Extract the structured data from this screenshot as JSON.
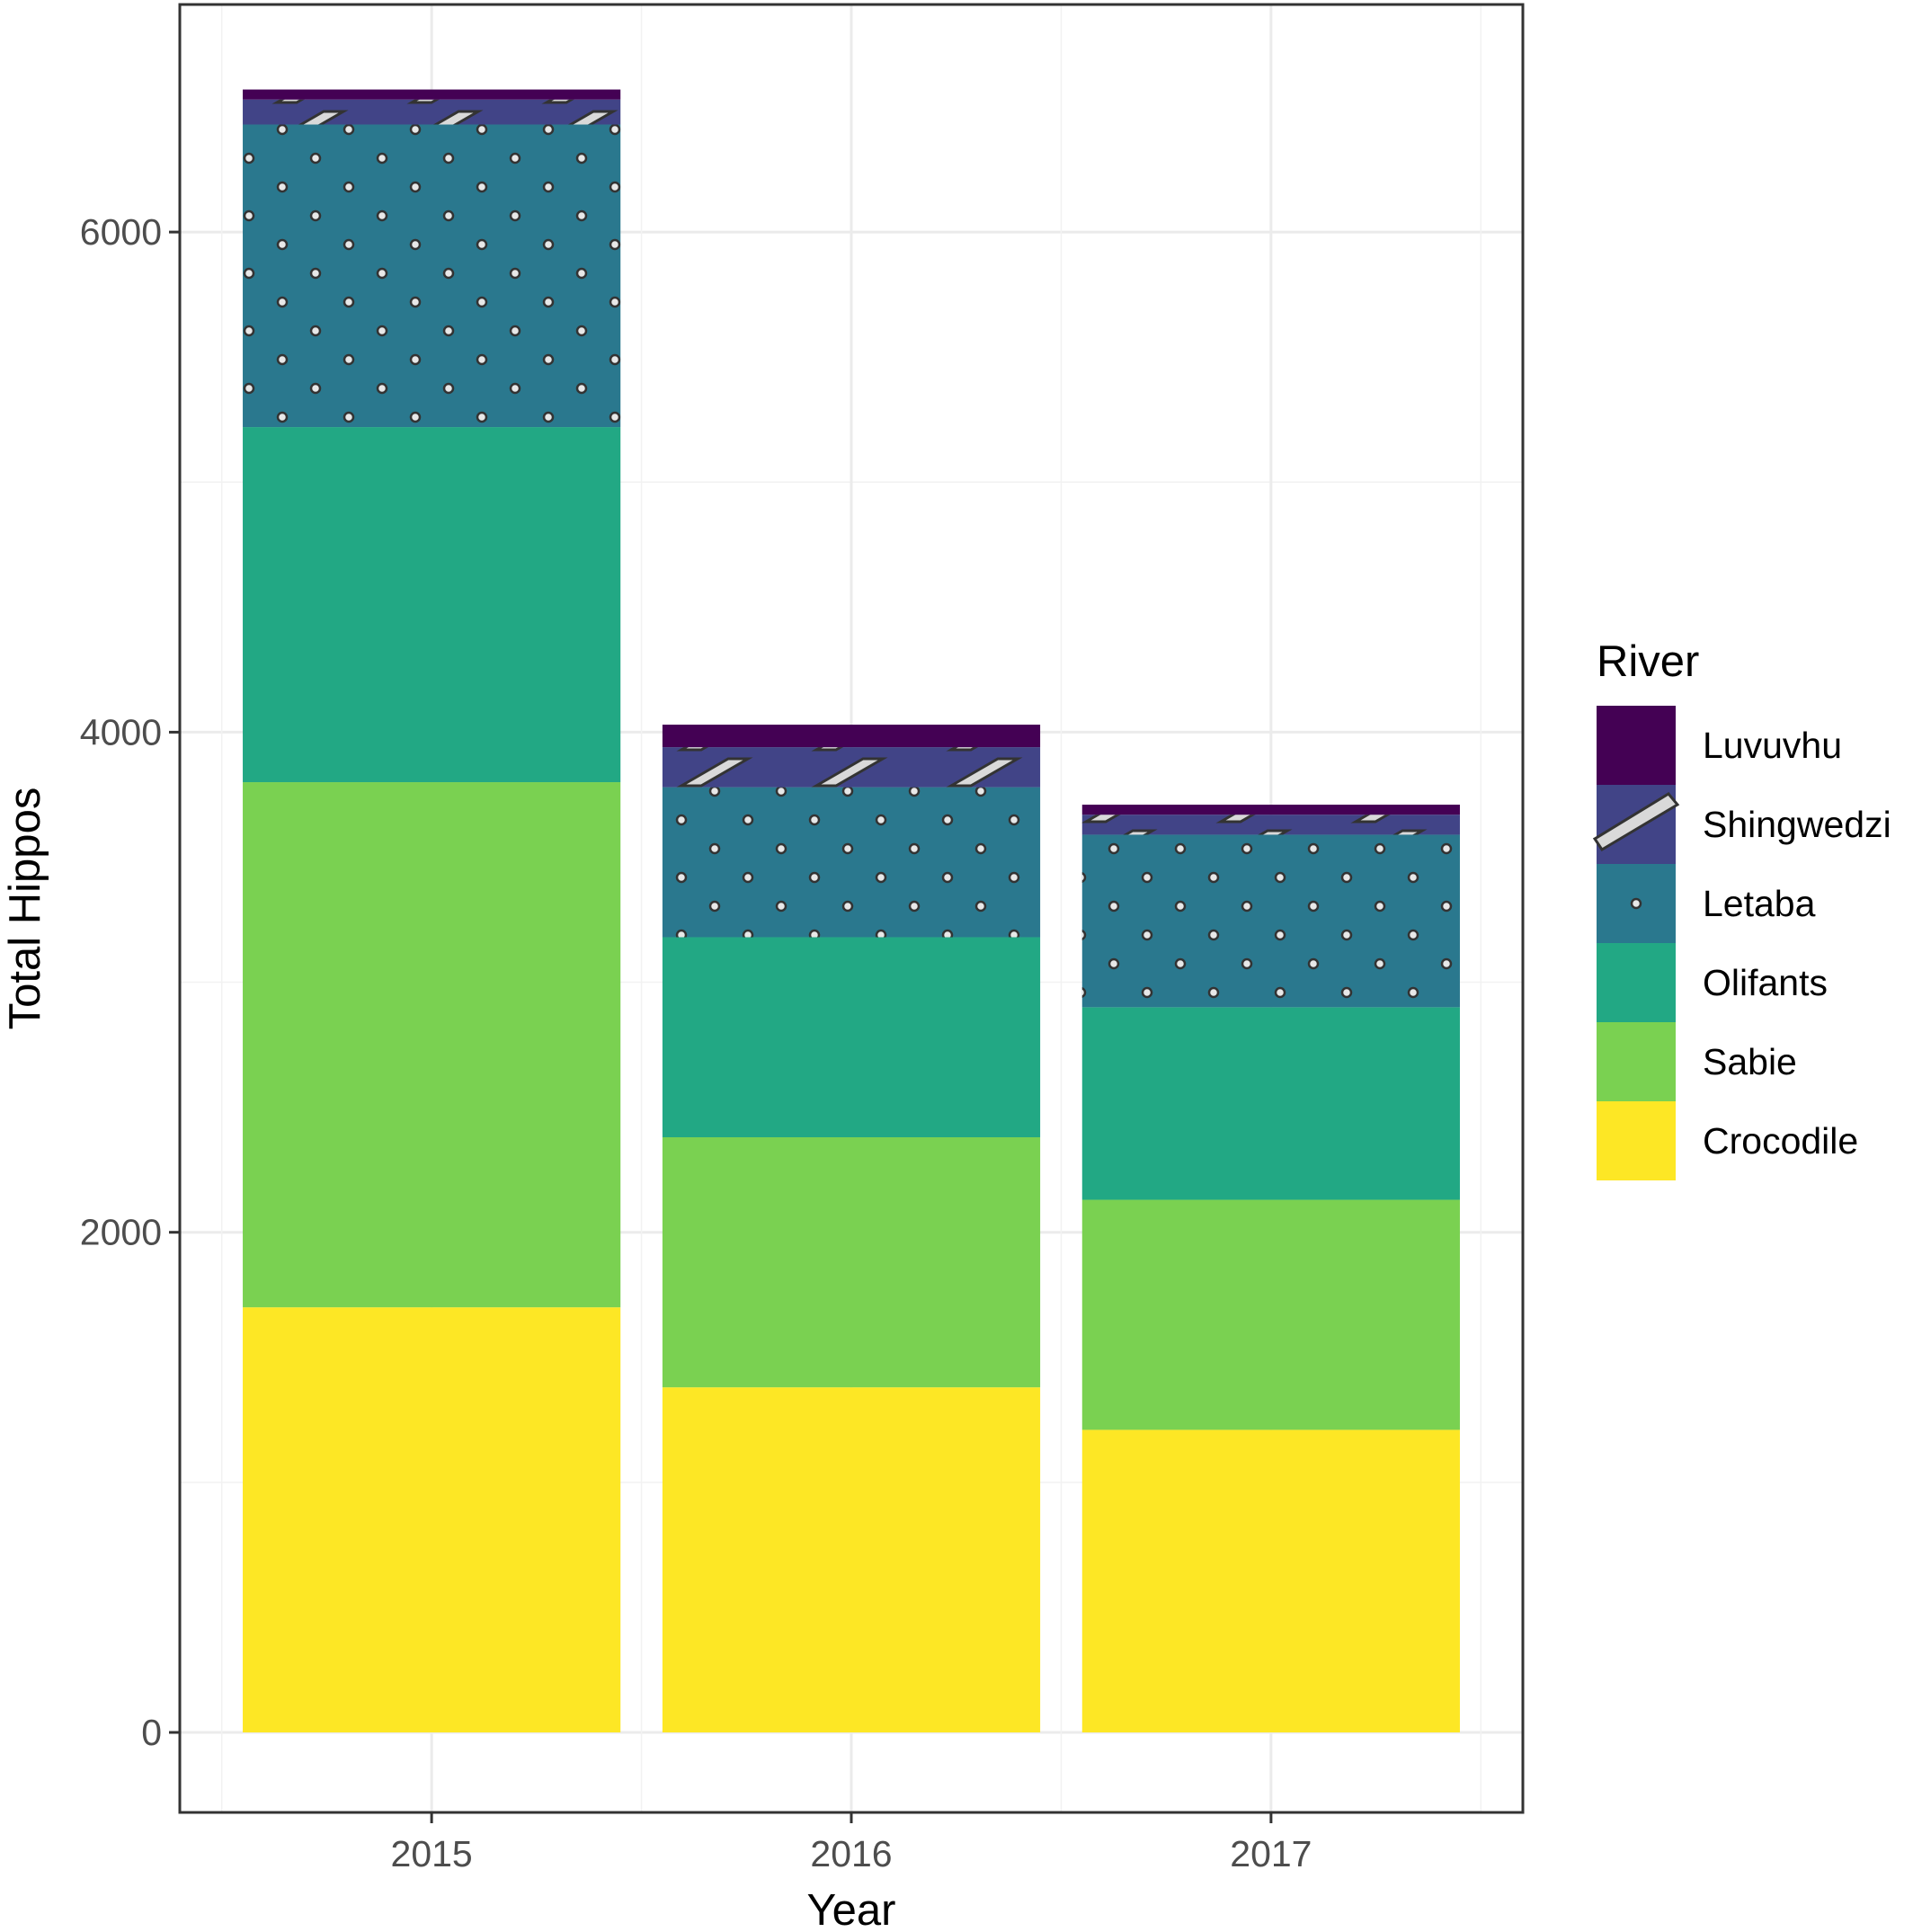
{
  "chart_data": {
    "type": "bar",
    "stacked": true,
    "categories": [
      "2015",
      "2016",
      "2017"
    ],
    "xlabel": "Year",
    "ylabel": "Total Hippos",
    "ylim": [
      -320,
      6910
    ],
    "yticks": [
      0,
      2000,
      4000,
      6000
    ],
    "grid": true,
    "legend": {
      "title": "River",
      "placement": "right"
    },
    "series": [
      {
        "name": "Crocodile",
        "color": "#FDE725",
        "pattern": "none",
        "values": [
          1700,
          1380,
          1210
        ]
      },
      {
        "name": "Sabie",
        "color": "#7AD151",
        "pattern": "none",
        "values": [
          2100,
          1000,
          920
        ]
      },
      {
        "name": "Olifants",
        "color": "#22A884",
        "pattern": "none",
        "values": [
          1420,
          800,
          770
        ]
      },
      {
        "name": "Letaba",
        "color": "#2A788E",
        "pattern": "circle",
        "values": [
          1210,
          600,
          690
        ]
      },
      {
        "name": "Shingwedzi",
        "color": "#414487",
        "pattern": "stripe",
        "values": [
          100,
          160,
          80
        ]
      },
      {
        "name": "Luvuvhu",
        "color": "#440154",
        "pattern": "none",
        "values": [
          40,
          90,
          40
        ]
      }
    ]
  }
}
